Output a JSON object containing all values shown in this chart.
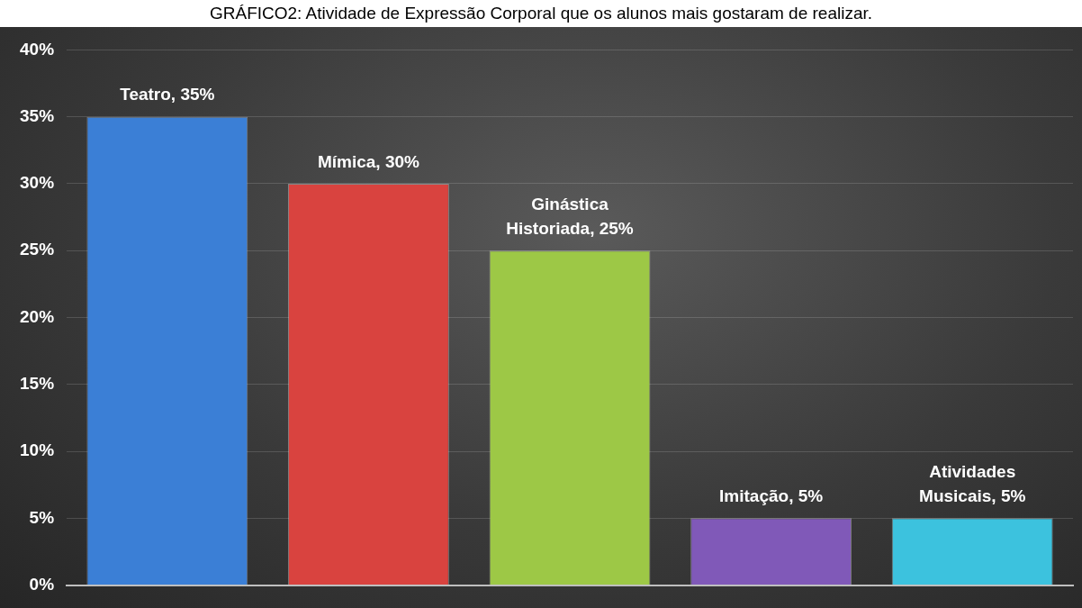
{
  "chart_data": {
    "type": "bar",
    "title": "GRÁFICO2: Atividade de Expressão Corporal que os alunos mais gostaram de realizar.",
    "categories": [
      null,
      null,
      null,
      null,
      null
    ],
    "values": [
      35,
      30,
      25,
      5,
      5
    ],
    "value_labels": [
      "Teatro, 35%",
      "Mímica, 30%",
      "Ginástica Historiada, 25%",
      "Imitação, 5%",
      "Atividades Musicais, 5%"
    ],
    "colors": [
      "#3b7fd6",
      "#d9433f",
      "#9dc846",
      "#8059b8",
      "#3cc2de"
    ],
    "ylim": [
      0,
      40
    ],
    "yticks": [
      {
        "value": 0,
        "label": "0%"
      },
      {
        "value": 5,
        "label": "5%"
      },
      {
        "value": 10,
        "label": "10%"
      },
      {
        "value": 15,
        "label": "15%"
      },
      {
        "value": 20,
        "label": "20%"
      },
      {
        "value": 25,
        "label": "25%"
      },
      {
        "value": 30,
        "label": "30%"
      },
      {
        "value": 35,
        "label": "35%"
      },
      {
        "value": 40,
        "label": "40%"
      }
    ],
    "grid": "y",
    "tick_labels": "y",
    "legend": false
  }
}
